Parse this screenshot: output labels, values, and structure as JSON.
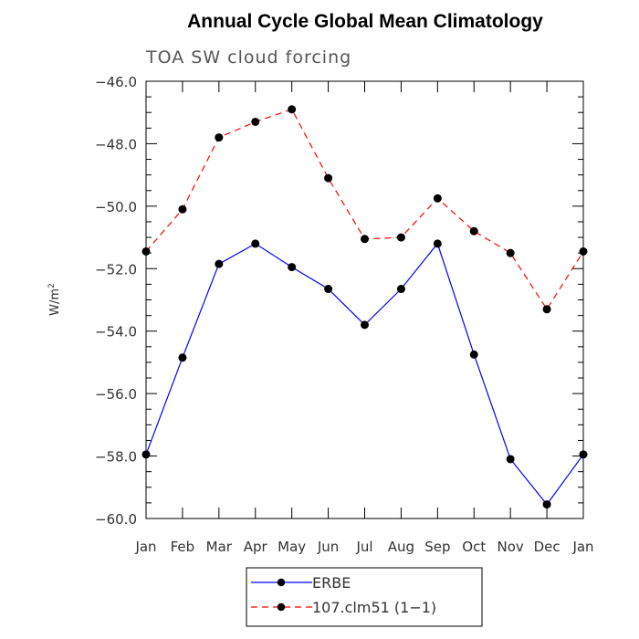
{
  "chart_data": {
    "type": "line",
    "title": "Annual Cycle Global Mean Climatology",
    "subtitle": "TOA SW cloud forcing",
    "ylabel": "W/m",
    "ylabel_superscript": "2",
    "ylim": [
      -60.0,
      -46.0
    ],
    "yticks": [
      "−46.0",
      "−48.0",
      "−50.0",
      "−52.0",
      "−54.0",
      "−56.0",
      "−58.0",
      "−60.0"
    ],
    "ytick_values": [
      -46,
      -48,
      -50,
      -52,
      -54,
      -56,
      -58,
      -60
    ],
    "categories": [
      "Jan",
      "Feb",
      "Mar",
      "Apr",
      "May",
      "Jun",
      "Jul",
      "Aug",
      "Sep",
      "Oct",
      "Nov",
      "Dec",
      "Jan"
    ],
    "series": [
      {
        "name": "ERBE",
        "color": "#0000ff",
        "dash": "solid",
        "values": [
          -57.95,
          -54.85,
          -51.85,
          -51.2,
          -51.95,
          -52.65,
          -53.8,
          -52.65,
          -51.2,
          -54.75,
          -58.1,
          -59.55,
          -57.95
        ]
      },
      {
        "name": "107.clm51 (1−1)",
        "color": "#ff0000",
        "dash": "dashed",
        "values": [
          -51.45,
          -50.1,
          -47.8,
          -47.3,
          -46.9,
          -49.1,
          -51.05,
          -51.0,
          -49.75,
          -50.8,
          -51.5,
          -53.3,
          -51.45
        ]
      }
    ],
    "legend_position": "bottom-center"
  }
}
